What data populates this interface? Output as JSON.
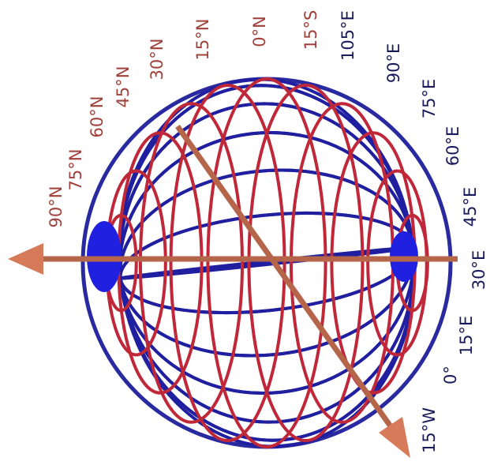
{
  "latitude_labels": [
    "90°N",
    "75°N",
    "60°N",
    "45°N",
    "30°N",
    "15°N",
    "0°N",
    "15°S"
  ],
  "longitude_labels": [
    "105°E",
    "90°E",
    "75°E",
    "60°E",
    "45°E",
    "30°E",
    "15°E",
    "0°",
    "15°W"
  ]
}
